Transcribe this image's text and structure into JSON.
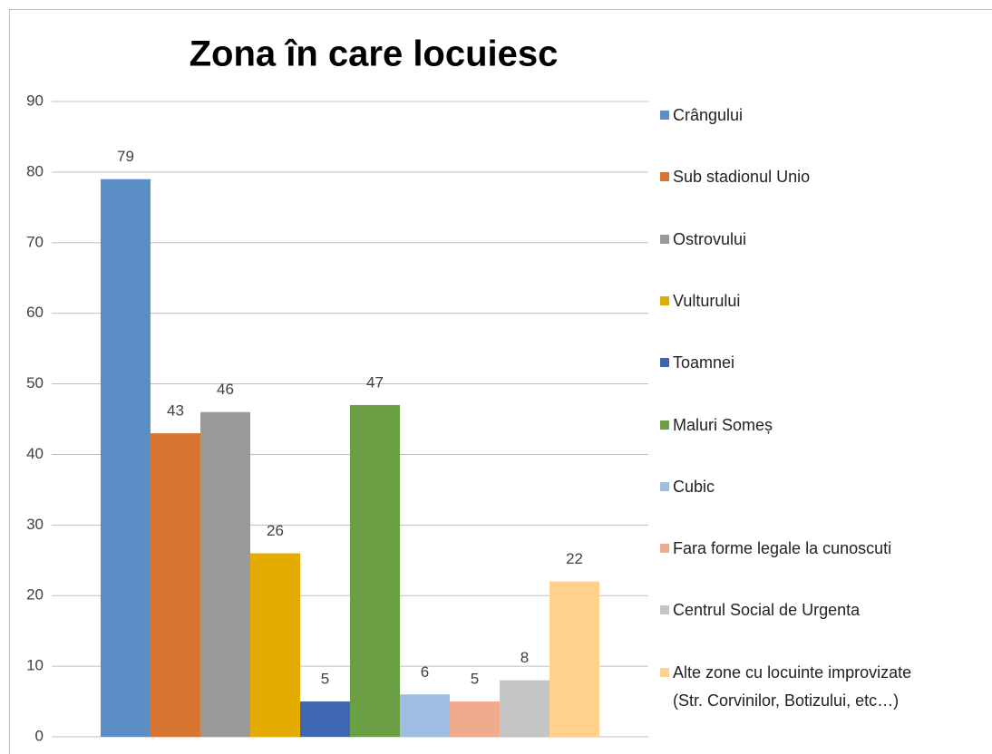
{
  "chart_data": {
    "type": "bar",
    "title": "Zona în care locuiesc",
    "categories": [
      null
    ],
    "series": [
      {
        "name": "Crângului",
        "color": "#5b8ec4",
        "values": [
          79
        ]
      },
      {
        "name": "Sub stadionul Unio",
        "color": "#d87431",
        "values": [
          43
        ]
      },
      {
        "name": "Ostrovului",
        "color": "#999999",
        "values": [
          46
        ]
      },
      {
        "name": "Vulturului",
        "color": "#e5ac00",
        "values": [
          26
        ]
      },
      {
        "name": "Toamnei",
        "color": "#3f66b0",
        "values": [
          5
        ]
      },
      {
        "name": "Maluri Someș",
        "color": "#6aa043",
        "values": [
          47
        ]
      },
      {
        "name": "Cubic",
        "color": "#9dbde2",
        "values": [
          6
        ]
      },
      {
        "name": "Fara forme legale la cunoscuti",
        "color": "#f0ab8f",
        "values": [
          5
        ]
      },
      {
        "name": "Centrul Social de Urgenta",
        "color": "#c4c4c4",
        "values": [
          8
        ]
      },
      {
        "name": "Alte zone cu locuinte improvizate\n(Str. Corvinilor, Botizului, etc…)",
        "color": "#ffd18a",
        "values": [
          22
        ]
      }
    ],
    "ylim": [
      0,
      90
    ],
    "yticks": [
      0,
      10,
      20,
      30,
      40,
      50,
      60,
      70,
      80,
      90
    ],
    "grid": true,
    "legend": "right"
  }
}
